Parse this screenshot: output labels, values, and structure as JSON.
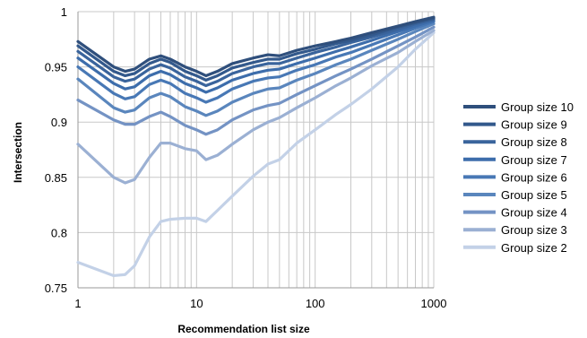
{
  "chart_data": {
    "type": "line",
    "xlabel": "Recommendation list size",
    "ylabel": "Intersection",
    "x_scale": "log",
    "xlim": [
      1,
      1000
    ],
    "ylim": [
      0.75,
      1
    ],
    "x_ticks": [
      "1",
      "10",
      "100",
      "1000"
    ],
    "y_ticks": [
      "0.75",
      "0.8",
      "0.85",
      "0.9",
      "0.95",
      "1"
    ],
    "grid": true,
    "legend_position": "right",
    "x": [
      1,
      2,
      2.5,
      3,
      4,
      5,
      6,
      8,
      10,
      12,
      15,
      20,
      30,
      40,
      50,
      70,
      100,
      150,
      200,
      300,
      500,
      700,
      1000
    ],
    "series": [
      {
        "name": "Group size 10",
        "color": "#2f4f7c",
        "values": [
          0.973,
          0.95,
          0.946,
          0.948,
          0.957,
          0.96,
          0.957,
          0.95,
          0.946,
          0.942,
          0.946,
          0.953,
          0.958,
          0.961,
          0.96,
          0.965,
          0.969,
          0.973,
          0.976,
          0.981,
          0.987,
          0.991,
          0.995
        ]
      },
      {
        "name": "Group size 9",
        "color": "#33598c",
        "values": [
          0.969,
          0.946,
          0.942,
          0.944,
          0.953,
          0.957,
          0.954,
          0.946,
          0.942,
          0.938,
          0.942,
          0.949,
          0.954,
          0.957,
          0.957,
          0.962,
          0.966,
          0.971,
          0.974,
          0.979,
          0.986,
          0.99,
          0.994
        ]
      },
      {
        "name": "Group size 8",
        "color": "#3a649c",
        "values": [
          0.964,
          0.941,
          0.937,
          0.939,
          0.948,
          0.952,
          0.949,
          0.941,
          0.937,
          0.933,
          0.937,
          0.944,
          0.95,
          0.953,
          0.953,
          0.958,
          0.963,
          0.968,
          0.972,
          0.977,
          0.984,
          0.989,
          0.993
        ]
      },
      {
        "name": "Group size 7",
        "color": "#3d6dab",
        "values": [
          0.958,
          0.935,
          0.93,
          0.932,
          0.942,
          0.946,
          0.943,
          0.935,
          0.931,
          0.927,
          0.931,
          0.938,
          0.944,
          0.947,
          0.948,
          0.953,
          0.958,
          0.964,
          0.968,
          0.974,
          0.982,
          0.987,
          0.992
        ]
      },
      {
        "name": "Group size 6",
        "color": "#4878b5",
        "values": [
          0.95,
          0.926,
          0.921,
          0.923,
          0.934,
          0.938,
          0.935,
          0.926,
          0.922,
          0.918,
          0.922,
          0.93,
          0.937,
          0.94,
          0.941,
          0.947,
          0.952,
          0.959,
          0.963,
          0.97,
          0.979,
          0.985,
          0.991
        ]
      },
      {
        "name": "Group size 5",
        "color": "#5a86bd",
        "values": [
          0.939,
          0.913,
          0.909,
          0.911,
          0.922,
          0.926,
          0.923,
          0.914,
          0.91,
          0.906,
          0.91,
          0.918,
          0.926,
          0.93,
          0.931,
          0.938,
          0.944,
          0.952,
          0.957,
          0.965,
          0.975,
          0.982,
          0.989
        ]
      },
      {
        "name": "Group size 4",
        "color": "#7493c4",
        "values": [
          0.92,
          0.902,
          0.898,
          0.898,
          0.905,
          0.909,
          0.905,
          0.897,
          0.893,
          0.889,
          0.893,
          0.902,
          0.911,
          0.915,
          0.917,
          0.925,
          0.933,
          0.942,
          0.948,
          0.957,
          0.969,
          0.977,
          0.986
        ]
      },
      {
        "name": "Group size 3",
        "color": "#9bb0d3",
        "values": [
          0.88,
          0.85,
          0.845,
          0.848,
          0.868,
          0.881,
          0.881,
          0.876,
          0.874,
          0.866,
          0.87,
          0.88,
          0.893,
          0.9,
          0.904,
          0.913,
          0.922,
          0.933,
          0.94,
          0.951,
          0.963,
          0.973,
          0.983
        ]
      },
      {
        "name": "Group size 2",
        "color": "#c3d1e7",
        "values": [
          0.773,
          0.761,
          0.762,
          0.77,
          0.796,
          0.81,
          0.812,
          0.813,
          0.813,
          0.81,
          0.82,
          0.833,
          0.851,
          0.862,
          0.866,
          0.881,
          0.893,
          0.907,
          0.916,
          0.93,
          0.95,
          0.966,
          0.981
        ]
      }
    ]
  }
}
